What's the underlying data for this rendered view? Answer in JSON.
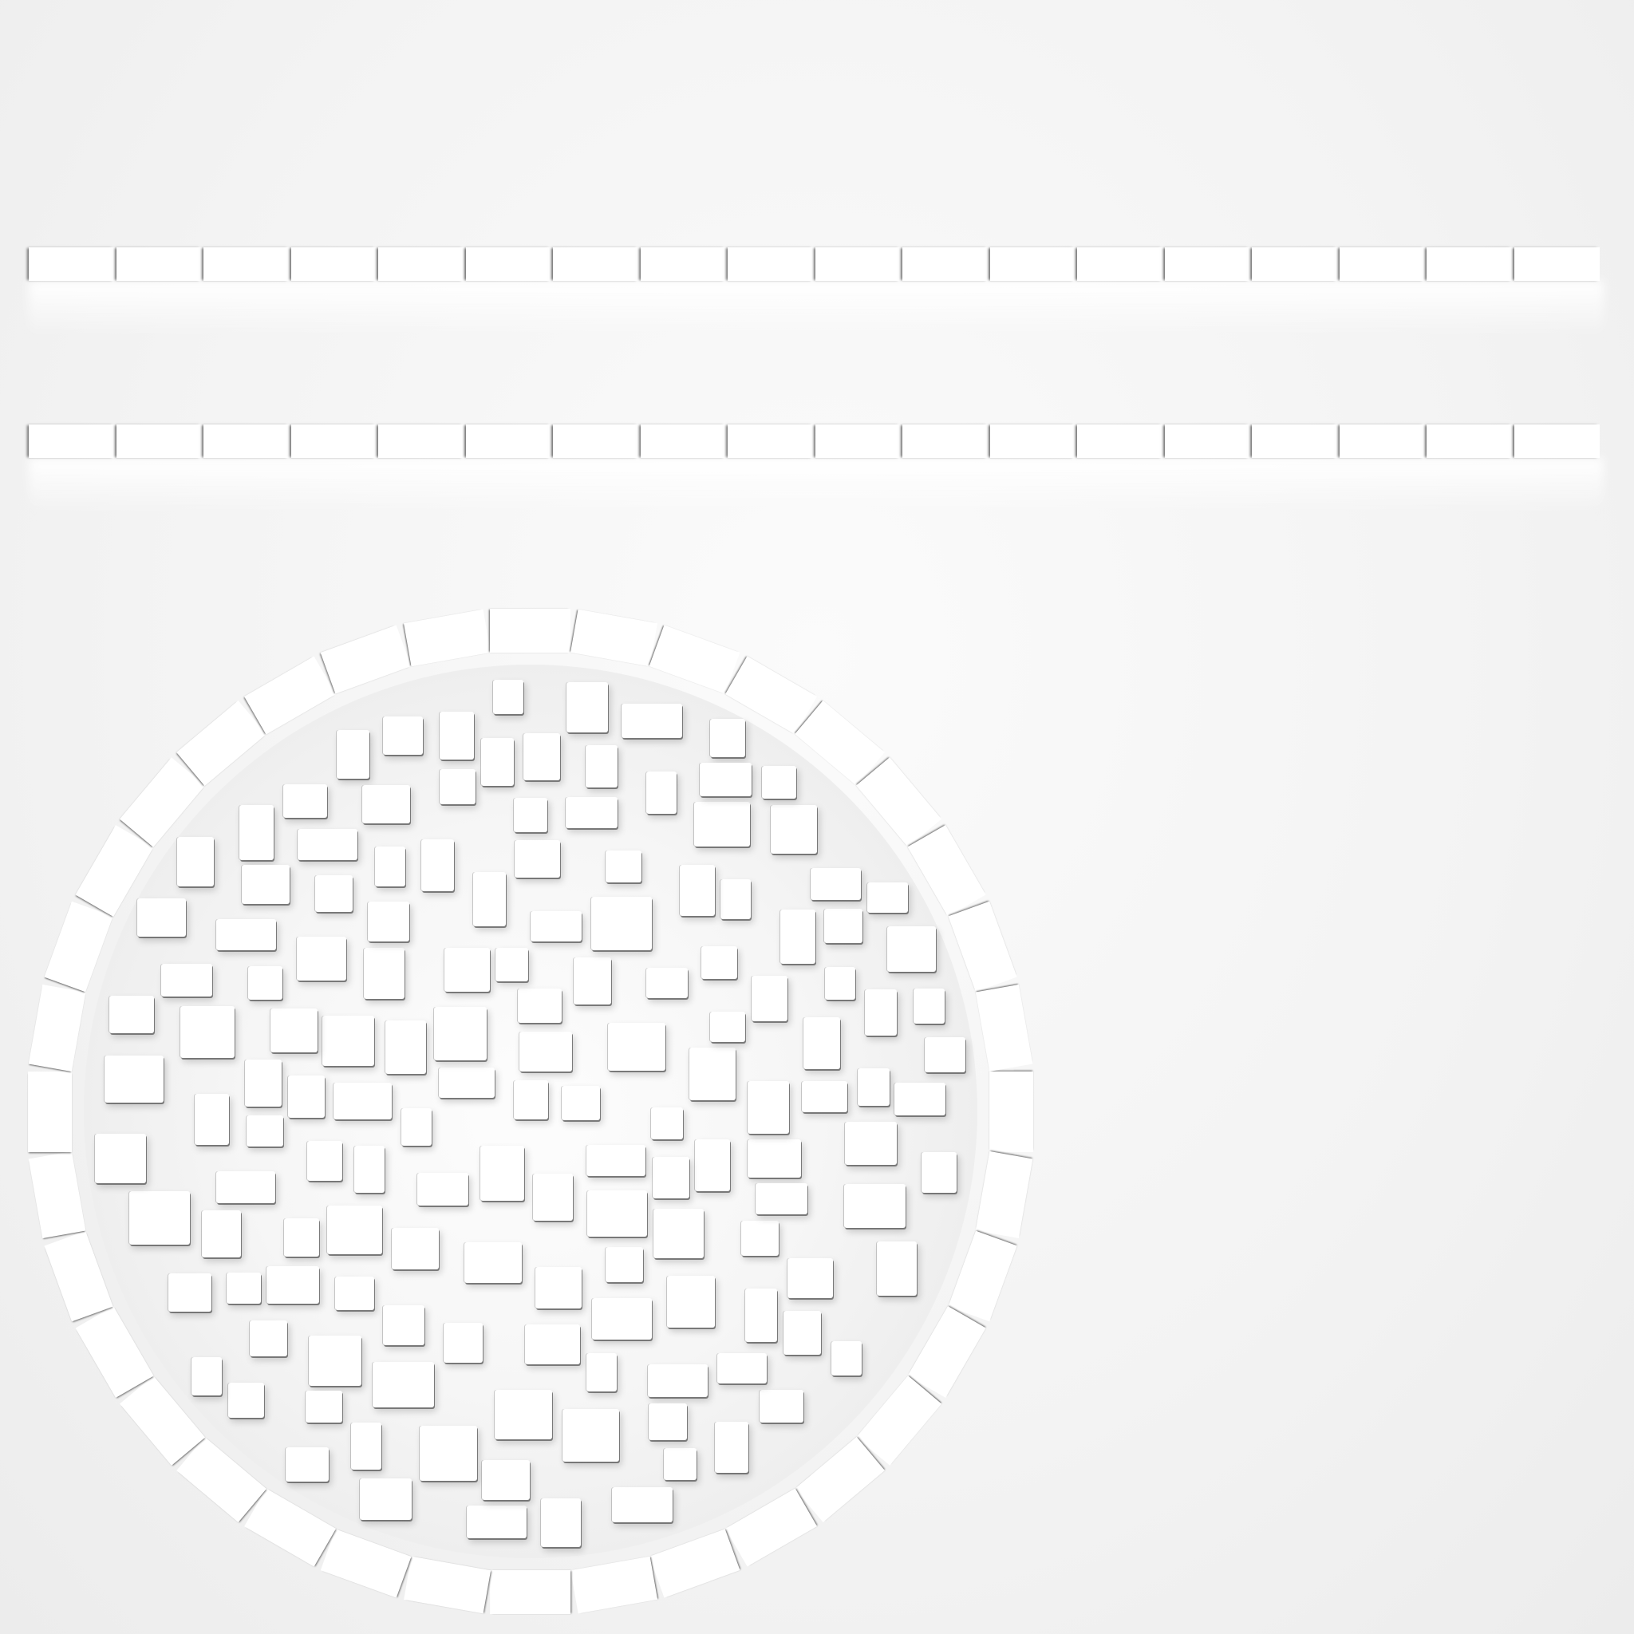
{
  "colors": {
    "background": "#f4f4f4",
    "tile": "#ffffff",
    "shadow": "#6e6e6e"
  },
  "strips": [
    {
      "name": "upper-strip",
      "slot_count": 18
    },
    {
      "name": "lower-strip",
      "slot_count": 18
    }
  ],
  "ring": {
    "segment_count": 36
  },
  "tile_count": 150
}
